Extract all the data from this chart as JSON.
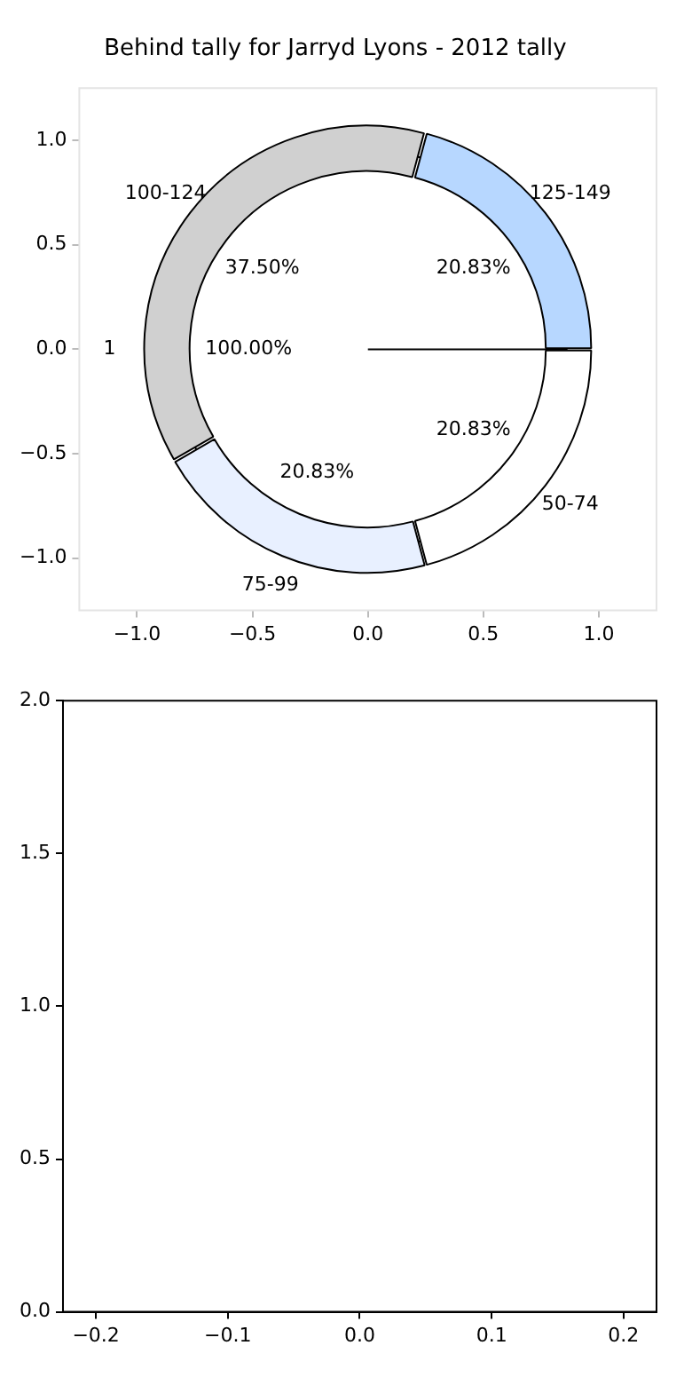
{
  "chart_data": [
    {
      "type": "scatter",
      "title": "Behind tally for Jarryd Lyons - 2012 tally",
      "legend": false,
      "xlim": [
        -1.25,
        1.25
      ],
      "ylim": [
        -1.25,
        1.25
      ],
      "xticks": [
        {
          "value": -1,
          "label": "−1.0"
        },
        {
          "value": -0.5,
          "label": "−0.5"
        },
        {
          "value": 0,
          "label": "0.0"
        },
        {
          "value": 0.5,
          "label": "0.5"
        },
        {
          "value": 1,
          "label": "1.0"
        }
      ],
      "yticks": [
        {
          "value": -1,
          "label": "−1.0"
        },
        {
          "value": -0.5,
          "label": "−0.5"
        },
        {
          "value": 0,
          "label": "0.0"
        },
        {
          "value": 0.5,
          "label": "0.5"
        },
        {
          "value": 1,
          "label": "1.0"
        }
      ]
    },
    {
      "type": "donut",
      "categories": [
        "50-74",
        "75-99",
        "100-124",
        "125-149"
      ],
      "values": [
        20.83,
        20.83,
        37.5,
        20.83
      ],
      "value_labels": [
        "20.83%",
        "20.83%",
        "37.50%",
        "20.83%"
      ],
      "colors": [
        "#ffffff",
        "#e8f0ff",
        "#d0d0d0",
        "#b7d7ff"
      ],
      "legend": false
    },
    {
      "type": "pie",
      "categories": [
        "1"
      ],
      "values": [
        100
      ],
      "value_labels": [
        "100.00%"
      ],
      "colors": [
        "#ffffff"
      ],
      "legend": false
    },
    {
      "type": "scatter",
      "legend": false,
      "xlim": [
        -0.225,
        0.225
      ],
      "ylim": [
        0,
        2
      ],
      "xticks": [
        {
          "value": -0.2,
          "label": "−0.2"
        },
        {
          "value": -0.1,
          "label": "−0.1"
        },
        {
          "value": 0,
          "label": "0.0"
        },
        {
          "value": 0.1,
          "label": "0.1"
        },
        {
          "value": 0.2,
          "label": "0.2"
        }
      ],
      "yticks": [
        {
          "value": 0,
          "label": "0.0"
        },
        {
          "value": 0.5,
          "label": "0.5"
        },
        {
          "value": 1,
          "label": "1.0"
        },
        {
          "value": 1.5,
          "label": "1.5"
        },
        {
          "value": 2,
          "label": "2.0"
        }
      ]
    }
  ]
}
